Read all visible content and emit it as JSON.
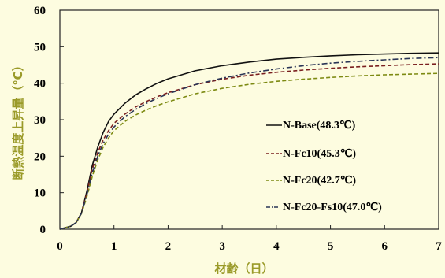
{
  "chart_data": {
    "type": "line",
    "title": "",
    "xlabel": "材齢（日）",
    "ylabel": "断熱温度上昇量（℃）",
    "xlim": [
      0,
      7
    ],
    "ylim": [
      0,
      60
    ],
    "x_ticks": [
      "0",
      "1",
      "2",
      "3",
      "4",
      "5",
      "6",
      "7"
    ],
    "y_ticks": [
      "0",
      "10",
      "20",
      "30",
      "40",
      "50",
      "60"
    ],
    "grid": false,
    "legend_position": "lower-right",
    "series": [
      {
        "name": "N-Base(48.3℃)",
        "color": "#111111",
        "dash": "solid",
        "x": [
          0,
          0.2,
          0.3,
          0.4,
          0.5,
          0.6,
          0.7,
          0.8,
          0.9,
          1.0,
          1.2,
          1.4,
          1.6,
          1.8,
          2.0,
          2.5,
          3.0,
          3.5,
          4.0,
          4.5,
          5.0,
          5.5,
          6.0,
          6.5,
          7.0
        ],
        "y": [
          0,
          0.8,
          1.8,
          4.5,
          10.5,
          17.5,
          22.5,
          26.5,
          29.5,
          31.5,
          34.5,
          36.8,
          38.5,
          40.0,
          41.2,
          43.4,
          44.8,
          45.8,
          46.6,
          47.1,
          47.5,
          47.8,
          48.0,
          48.2,
          48.3
        ]
      },
      {
        "name": "N-Fc10(45.3℃)",
        "color": "#7a1f1f",
        "dash": "dash",
        "x": [
          0,
          0.2,
          0.3,
          0.4,
          0.5,
          0.6,
          0.7,
          0.8,
          0.9,
          1.0,
          1.2,
          1.4,
          1.6,
          1.8,
          2.0,
          2.5,
          3.0,
          3.5,
          4.0,
          4.5,
          5.0,
          5.5,
          6.0,
          6.5,
          7.0
        ],
        "y": [
          0,
          0.8,
          1.8,
          4.5,
          10.0,
          16.5,
          21.0,
          24.5,
          27.0,
          29.0,
          31.5,
          33.5,
          35.0,
          36.3,
          37.4,
          39.6,
          41.1,
          42.2,
          43.0,
          43.6,
          44.1,
          44.5,
          44.8,
          45.1,
          45.3
        ]
      },
      {
        "name": "N-Fc20(42.7℃)",
        "color": "#7d8a12",
        "dash": "dash",
        "x": [
          0,
          0.2,
          0.3,
          0.4,
          0.5,
          0.6,
          0.7,
          0.8,
          0.9,
          1.0,
          1.2,
          1.4,
          1.6,
          1.8,
          2.0,
          2.5,
          3.0,
          3.5,
          4.0,
          4.5,
          5.0,
          5.5,
          6.0,
          6.5,
          7.0
        ],
        "y": [
          0,
          0.8,
          1.8,
          4.3,
          9.0,
          14.5,
          19.0,
          22.5,
          25.0,
          27.0,
          29.5,
          31.3,
          32.7,
          33.9,
          34.9,
          37.1,
          38.6,
          39.7,
          40.5,
          41.1,
          41.6,
          42.0,
          42.3,
          42.5,
          42.7
        ]
      },
      {
        "name": "N-Fc20-Fs10(47.0℃)",
        "color": "#2a3556",
        "dash": "dashdot",
        "x": [
          0,
          0.2,
          0.3,
          0.4,
          0.5,
          0.6,
          0.7,
          0.8,
          0.9,
          1.0,
          1.2,
          1.4,
          1.6,
          1.8,
          2.0,
          2.5,
          3.0,
          3.5,
          4.0,
          4.5,
          5.0,
          5.5,
          6.0,
          6.5,
          7.0
        ],
        "y": [
          0,
          0.8,
          1.8,
          4.4,
          9.5,
          15.5,
          20.0,
          23.5,
          26.0,
          28.0,
          30.8,
          32.8,
          34.5,
          35.9,
          37.1,
          39.6,
          41.4,
          42.8,
          43.9,
          44.8,
          45.5,
          46.0,
          46.4,
          46.8,
          47.0
        ]
      }
    ]
  }
}
